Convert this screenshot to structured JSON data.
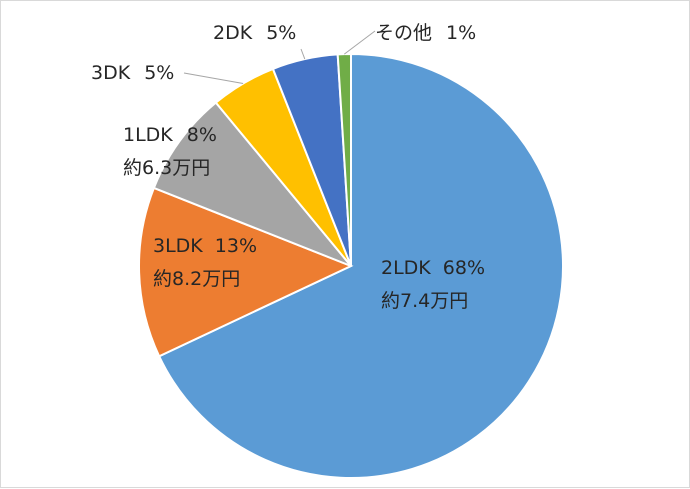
{
  "chart_data": {
    "type": "pie",
    "title": "",
    "start_angle_deg": 0,
    "direction": "clockwise",
    "slices": [
      {
        "label": "2LDK",
        "percent_text": "68%",
        "value": 68,
        "sublabel": "約7.4万円",
        "color": "#5B9BD5"
      },
      {
        "label": "3LDK",
        "percent_text": "13%",
        "value": 13,
        "sublabel": "約8.2万円",
        "color": "#ED7D31"
      },
      {
        "label": "1LDK",
        "percent_text": "8%",
        "value": 8,
        "sublabel": "約6.3万円",
        "color": "#A5A5A5"
      },
      {
        "label": "3DK",
        "percent_text": "5%",
        "value": 5,
        "sublabel": "",
        "color": "#FFC000"
      },
      {
        "label": "2DK",
        "percent_text": "5%",
        "value": 5,
        "sublabel": "",
        "color": "#4472C4"
      },
      {
        "label": "その他",
        "percent_text": "1%",
        "value": 1,
        "sublabel": "",
        "color": "#70AD47"
      }
    ]
  }
}
